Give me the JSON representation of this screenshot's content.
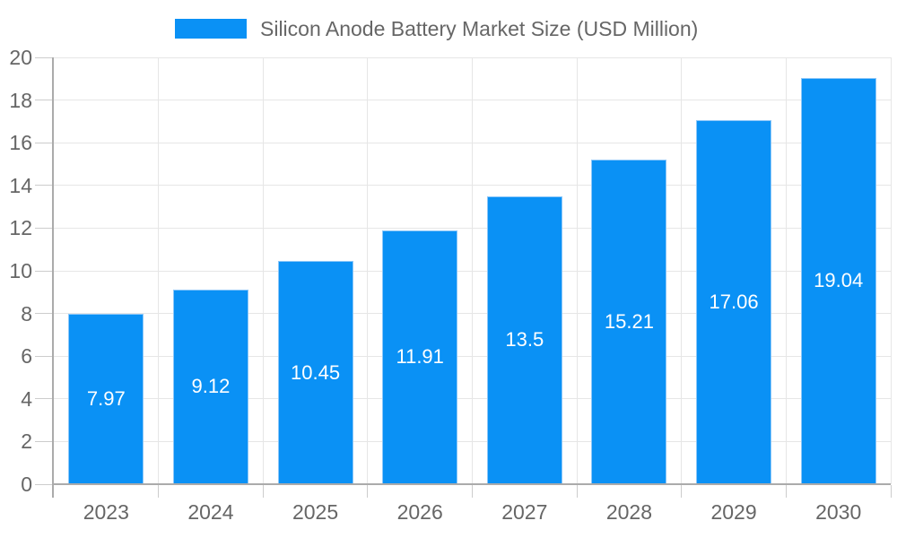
{
  "legend": {
    "label": "Silicon Anode Battery Market Size (USD Million)"
  },
  "chart_data": {
    "type": "bar",
    "title": "Silicon Anode Battery Market Size (USD Million)",
    "categories": [
      "2023",
      "2024",
      "2025",
      "2026",
      "2027",
      "2028",
      "2029",
      "2030"
    ],
    "series": [
      {
        "name": "Silicon Anode Battery Market Size (USD Million)",
        "values": [
          7.97,
          9.12,
          10.45,
          11.91,
          13.5,
          15.21,
          17.06,
          19.04
        ]
      }
    ],
    "data_labels": [
      "7.97",
      "9.12",
      "10.45",
      "11.91",
      "13.5",
      "15.21",
      "17.06",
      "19.04"
    ],
    "xlabel": "",
    "ylabel": "",
    "ylim": [
      0,
      20
    ],
    "ytick_step": 2,
    "grid": true,
    "legend_position": "top",
    "colors": {
      "bar_fill": "#0a91f5",
      "bar_border": "#8cc7f9",
      "gridline": "#e6e6e6",
      "axis_line": "#ababab",
      "tick_mark": "#cccccc",
      "tick_label": "#666666",
      "legend_text": "#666666",
      "data_label": "#ffffff",
      "background": "#ffffff"
    }
  }
}
